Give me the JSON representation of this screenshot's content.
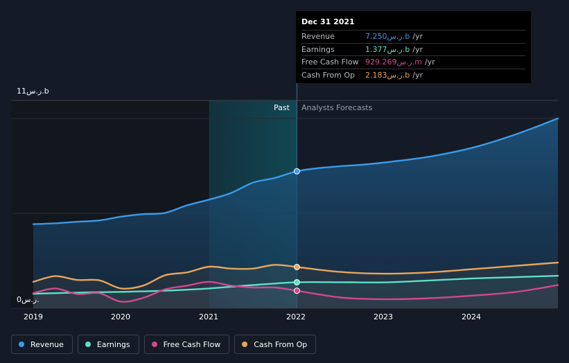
{
  "tooltip": {
    "date": "Dec 31 2021",
    "rows": [
      {
        "label": "Revenue",
        "value": "7.250ر.س.b",
        "unit": "/yr",
        "color": "#3a9be8"
      },
      {
        "label": "Earnings",
        "value": "1.377ر.س.b",
        "unit": "/yr",
        "color": "#5ee0c8"
      },
      {
        "label": "Free Cash Flow",
        "value": "929.269ر.س.m",
        "unit": "/yr",
        "color": "#d1488e"
      },
      {
        "label": "Cash From Op",
        "value": "2.183ر.س.b",
        "unit": "/yr",
        "color": "#e8a55c"
      }
    ]
  },
  "regions": {
    "past": "Past",
    "forecast": "Analysts Forecasts"
  },
  "legend": [
    {
      "label": "Revenue",
      "color": "#3a9be8"
    },
    {
      "label": "Earnings",
      "color": "#5ee0c8"
    },
    {
      "label": "Free Cash Flow",
      "color": "#d1488e"
    },
    {
      "label": "Cash From Op",
      "color": "#e8a55c"
    }
  ],
  "chart_data": {
    "type": "line",
    "y_max_label": "11ر.س.b",
    "y_min_label": "0ر.س.",
    "x_tick_labels": [
      "2019",
      "2020",
      "2021",
      "2022",
      "2023",
      "2024"
    ],
    "xlim": [
      2019.0,
      2024.97
    ],
    "ylim": [
      0,
      11
    ],
    "highlight_x": 2022.0,
    "past_start": 2021.0,
    "past_end": 2022.0,
    "series": [
      {
        "name": "Revenue",
        "color": "#3a9be8",
        "fill": true,
        "points": [
          [
            2019.0,
            4.45
          ],
          [
            2019.25,
            4.5
          ],
          [
            2019.5,
            4.58
          ],
          [
            2019.75,
            4.65
          ],
          [
            2020.0,
            4.85
          ],
          [
            2020.25,
            4.98
          ],
          [
            2020.5,
            5.05
          ],
          [
            2020.75,
            5.45
          ],
          [
            2021.0,
            5.75
          ],
          [
            2021.25,
            6.1
          ],
          [
            2021.5,
            6.65
          ],
          [
            2021.75,
            6.9
          ],
          [
            2022.0,
            7.25
          ],
          [
            2022.25,
            7.42
          ],
          [
            2022.5,
            7.52
          ],
          [
            2022.75,
            7.6
          ],
          [
            2023.0,
            7.72
          ],
          [
            2023.5,
            8.02
          ],
          [
            2024.0,
            8.5
          ],
          [
            2024.5,
            9.22
          ],
          [
            2024.97,
            10.05
          ]
        ]
      },
      {
        "name": "Earnings",
        "color": "#5ee0c8",
        "fill": false,
        "points": [
          [
            2019.0,
            0.77
          ],
          [
            2019.5,
            0.83
          ],
          [
            2020.0,
            0.87
          ],
          [
            2020.5,
            0.93
          ],
          [
            2021.0,
            1.05
          ],
          [
            2021.5,
            1.23
          ],
          [
            2022.0,
            1.377
          ],
          [
            2022.5,
            1.38
          ],
          [
            2023.0,
            1.37
          ],
          [
            2023.5,
            1.47
          ],
          [
            2024.0,
            1.58
          ],
          [
            2024.5,
            1.65
          ],
          [
            2024.97,
            1.72
          ]
        ]
      },
      {
        "name": "Free Cash Flow",
        "color": "#d1488e",
        "fill": false,
        "points": [
          [
            2019.0,
            0.8
          ],
          [
            2019.25,
            1.05
          ],
          [
            2019.5,
            0.75
          ],
          [
            2019.75,
            0.8
          ],
          [
            2020.0,
            0.35
          ],
          [
            2020.25,
            0.55
          ],
          [
            2020.5,
            1.0
          ],
          [
            2020.75,
            1.2
          ],
          [
            2021.0,
            1.4
          ],
          [
            2021.25,
            1.2
          ],
          [
            2021.5,
            1.1
          ],
          [
            2021.75,
            1.1
          ],
          [
            2022.0,
            0.929
          ],
          [
            2022.5,
            0.57
          ],
          [
            2023.0,
            0.48
          ],
          [
            2023.5,
            0.53
          ],
          [
            2024.0,
            0.67
          ],
          [
            2024.5,
            0.87
          ],
          [
            2024.97,
            1.23
          ]
        ]
      },
      {
        "name": "Cash From Op",
        "color": "#e8a55c",
        "fill": false,
        "points": [
          [
            2019.0,
            1.4
          ],
          [
            2019.25,
            1.7
          ],
          [
            2019.5,
            1.5
          ],
          [
            2019.75,
            1.48
          ],
          [
            2020.0,
            1.05
          ],
          [
            2020.25,
            1.2
          ],
          [
            2020.5,
            1.75
          ],
          [
            2020.75,
            1.9
          ],
          [
            2021.0,
            2.2
          ],
          [
            2021.25,
            2.1
          ],
          [
            2021.5,
            2.1
          ],
          [
            2021.75,
            2.3
          ],
          [
            2022.0,
            2.183
          ],
          [
            2022.5,
            1.92
          ],
          [
            2023.0,
            1.83
          ],
          [
            2023.5,
            1.9
          ],
          [
            2024.0,
            2.07
          ],
          [
            2024.5,
            2.25
          ],
          [
            2024.97,
            2.42
          ]
        ]
      }
    ]
  }
}
